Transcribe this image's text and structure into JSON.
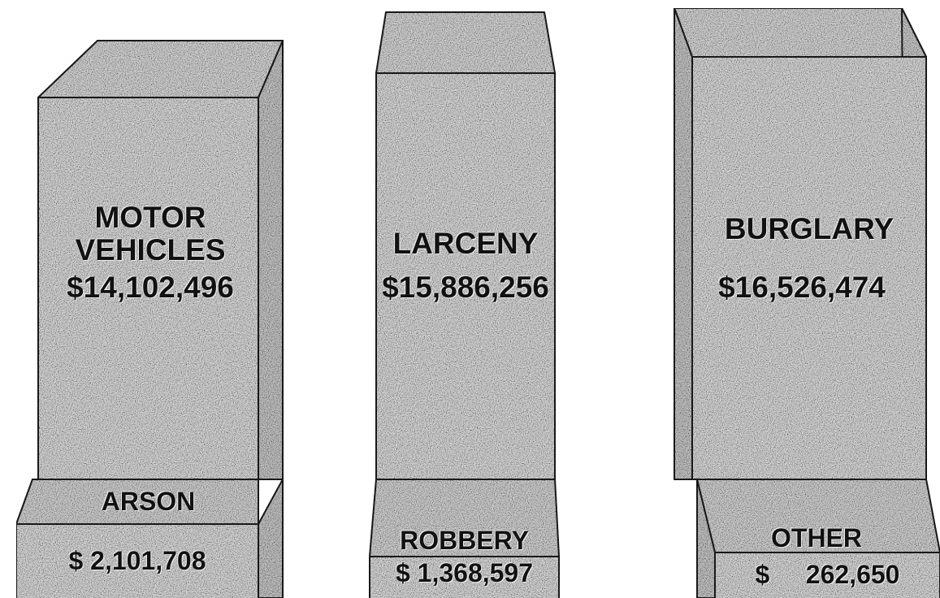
{
  "blocks": [
    {
      "label": "MOTOR VEHICLES",
      "value": "$14,102,496",
      "base_label": "ARSON",
      "base_value": "$ 2,101,708"
    },
    {
      "label": "LARCENY",
      "value": "$15,886,256",
      "base_label": "ROBBERY",
      "base_value": "$ 1,368,597"
    },
    {
      "label": "BURGLARY",
      "value": "$16,526,474",
      "base_label": "OTHER",
      "base_value": "$     262,650"
    }
  ]
}
